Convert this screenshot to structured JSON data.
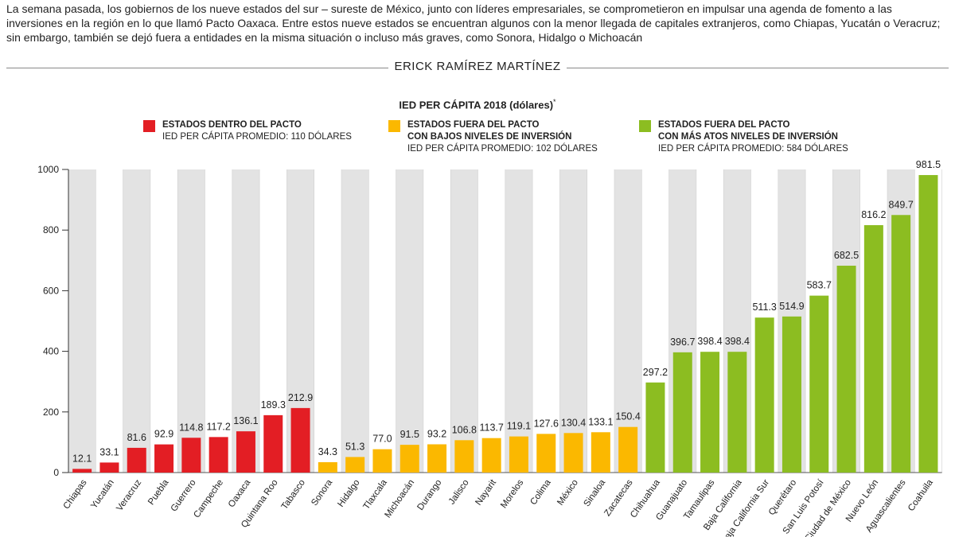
{
  "article": {
    "intro": "La semana pasada, los gobiernos de los nueve estados del sur – sureste de México, junto con líderes empresariales, se comprometieron en impulsar una agenda de fomento a las inversiones en la región en lo que llamó Pacto Oaxaca.  Entre estos nueve estados se encuentran algunos con la menor llegada de capitales extranjeros, como Chiapas, Yucatán o Veracruz; sin embargo, también se dejó fuera a entidades en la misma situación o incluso más graves, como Sonora, Hidalgo o Michoacán",
    "byline": "ERICK RAMÍREZ MARTÍNEZ"
  },
  "legend": [
    {
      "line1": "ESTADOS DENTRO DEL PACTO",
      "line2": "",
      "line3": "IED PER CÁPITA PROMEDIO: 110 DÓLARES",
      "color": "#e31e24"
    },
    {
      "line1": "ESTADOS FUERA DEL PACTO",
      "line2": "CON BAJOS NIVELES DE INVERSIÓN",
      "line3": "IED PER CÁPITA PROMEDIO: 102 DÓLARES",
      "color": "#fbb800"
    },
    {
      "line1": "ESTADOS FUERA DEL PACTO",
      "line2": "CON MÁS ATOS NIVELES DE INVERSIÓN",
      "line3": "IED PER CÁPITA PROMEDIO: 584 DÓLARES",
      "color": "#8cbd21"
    }
  ],
  "chart_data": {
    "type": "bar",
    "title": "IED PER CÁPITA 2018 (dólares)",
    "title_note": "*",
    "xlabel": "",
    "ylabel": "",
    "ylim": [
      0,
      1000
    ],
    "yticks": [
      0,
      200,
      400,
      600,
      800,
      1000
    ],
    "grid": "alternating vertical bands",
    "legend_position": "top",
    "categories": [
      "Chiapas",
      "Yucatán",
      "Veracruz",
      "Puebla",
      "Guerrero",
      "Campeche",
      "Oaxaca",
      "Quintana Roo",
      "Tabasco",
      "Sonora",
      "Hidalgo",
      "Tlaxcala",
      "Michoacán",
      "Durango",
      "Jalisco",
      "Nayarit",
      "Morelos",
      "Colima",
      "México",
      "Sinaloa",
      "Zacatecas",
      "Chihuahua",
      "Guanajuato",
      "Tamaulipas",
      "Baja California",
      "Baja California Sur",
      "Querétaro",
      "San Luis Potosí",
      "Ciudad de México",
      "Nuevo León",
      "Aguascalientes",
      "Coahuila"
    ],
    "values": [
      12.1,
      33.1,
      81.6,
      92.9,
      114.8,
      117.2,
      136.1,
      189.3,
      212.9,
      34.3,
      51.3,
      77.0,
      91.5,
      93.2,
      106.8,
      113.7,
      119.1,
      127.6,
      130.4,
      133.1,
      150.4,
      297.2,
      396.7,
      398.4,
      398.4,
      511.3,
      514.9,
      583.7,
      682.5,
      816.2,
      849.7,
      981.5
    ],
    "value_labels": [
      "12.1",
      "33.1",
      "81.6",
      "92.9",
      "114.8",
      "117.2",
      "136.1",
      "189.3",
      "212.9",
      "34.3",
      "51.3",
      "77.0",
      "91.5",
      "93.2",
      "106.8",
      "113.7",
      "119.1",
      "127.6",
      "130.4",
      "133.1",
      "150.4",
      "297.2",
      "396.7",
      "398.4",
      "398.4",
      "511.3",
      "514.9",
      "583.7",
      "682.5",
      "816.2",
      "849.7",
      "981.5"
    ],
    "groups": [
      0,
      0,
      0,
      0,
      0,
      0,
      0,
      0,
      0,
      1,
      1,
      1,
      1,
      1,
      1,
      1,
      1,
      1,
      1,
      1,
      1,
      2,
      2,
      2,
      2,
      2,
      2,
      2,
      2,
      2,
      2,
      2
    ],
    "group_colors": [
      "#e31e24",
      "#fbb800",
      "#8cbd21"
    ],
    "band_color": "#e3e3e3"
  }
}
